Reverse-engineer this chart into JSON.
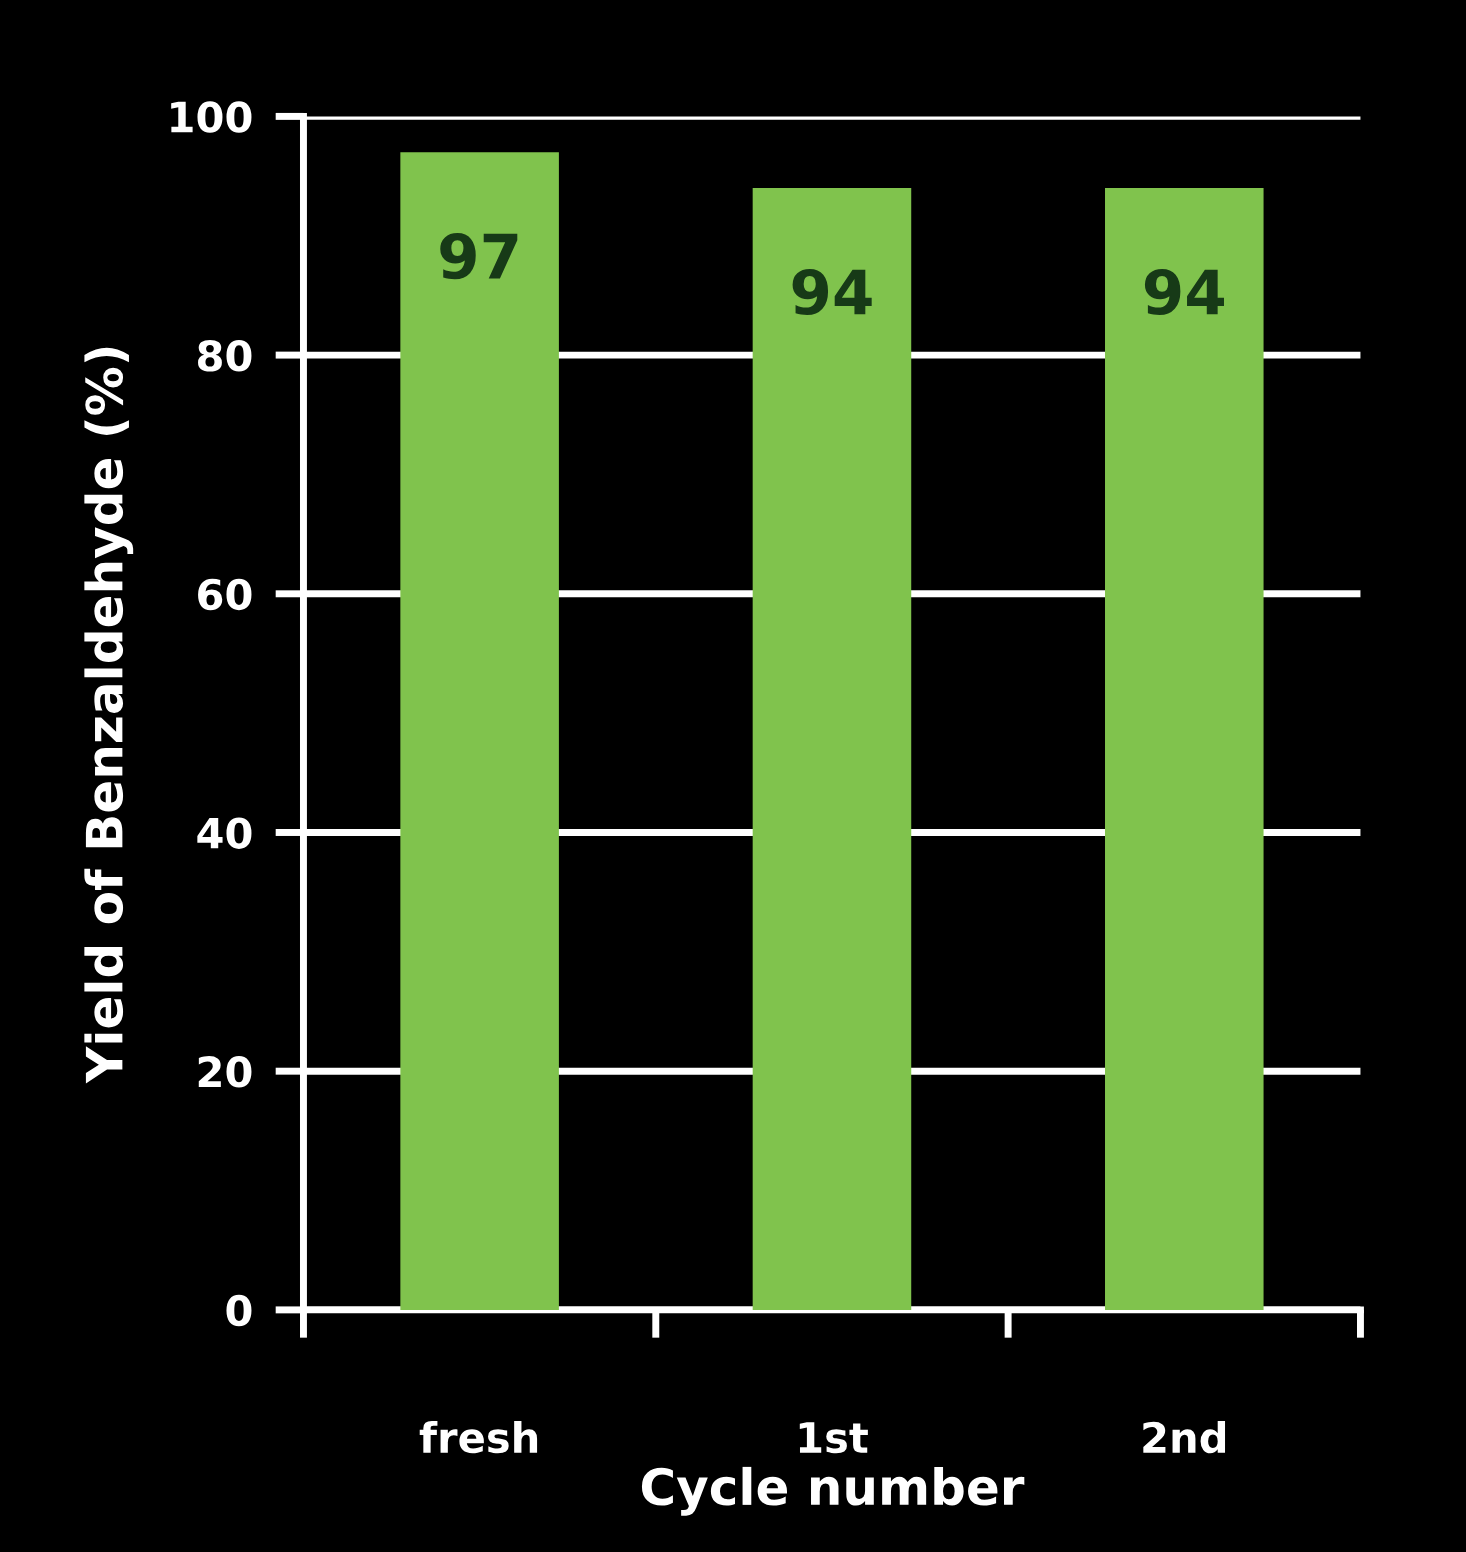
{
  "chart_data": {
    "type": "bar",
    "xlabel": "Cycle number",
    "ylabel": "Yield of Benzaldehyde (%)",
    "categories": [
      "fresh",
      "1st",
      "2nd"
    ],
    "series": [
      {
        "color": "#80c34d",
        "values": [
          97,
          94,
          94
        ]
      }
    ],
    "ylim": [
      0,
      100
    ],
    "yticks": [
      0,
      20,
      40,
      60,
      80,
      100
    ],
    "grid": "y",
    "data_labels": true,
    "legend": false
  }
}
